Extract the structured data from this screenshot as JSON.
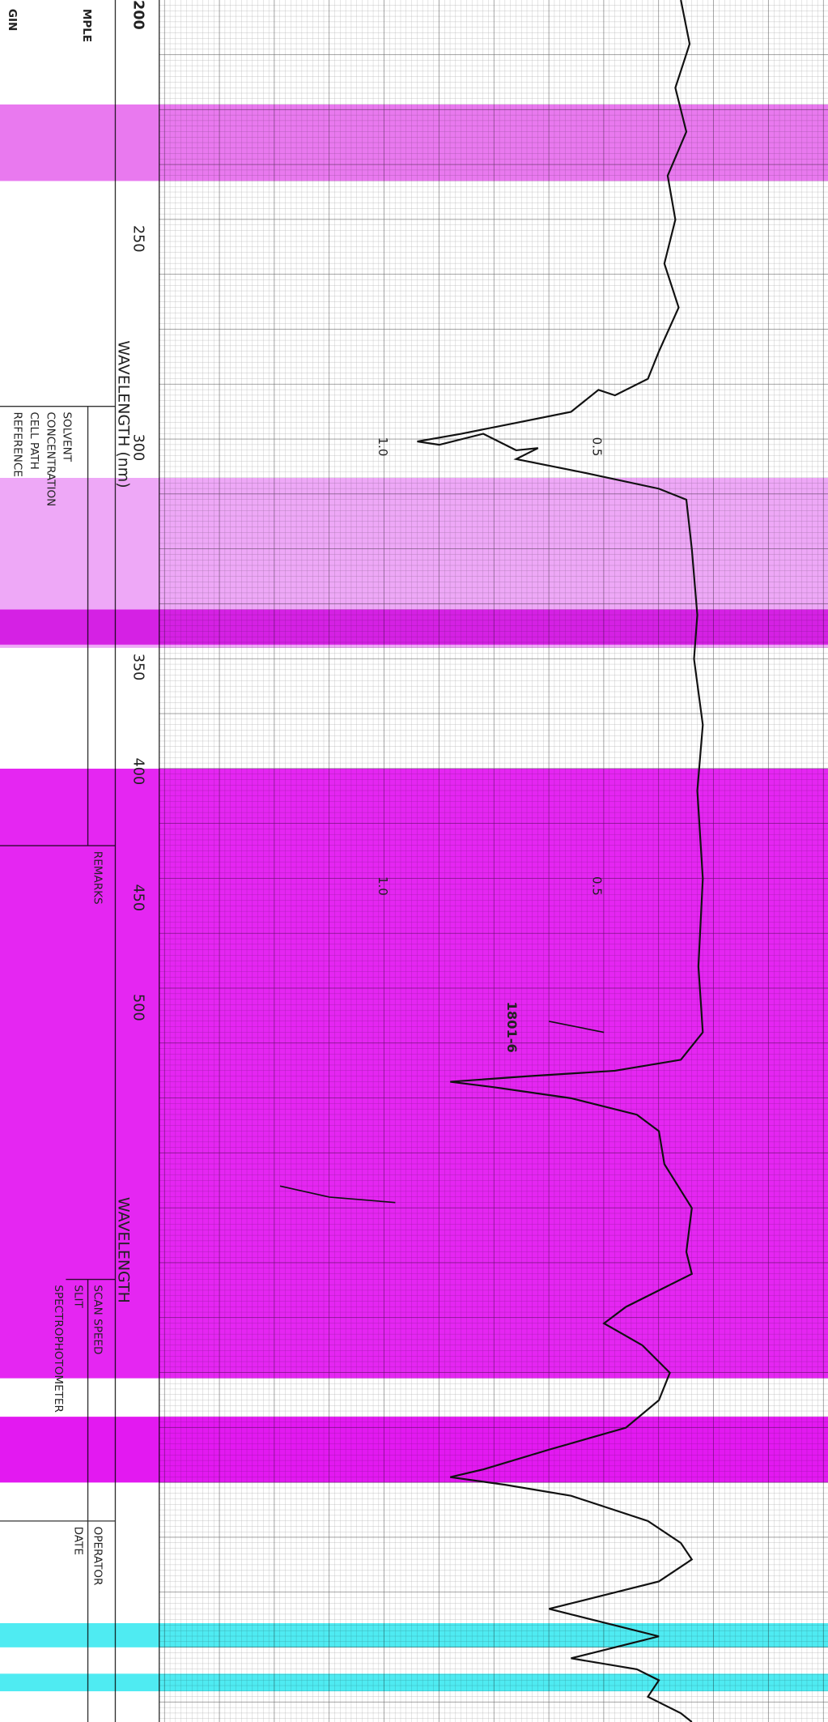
{
  "header": {
    "sample": "MPLE",
    "origin": "GIN",
    "corner": "200"
  },
  "axis": {
    "ticks": [
      "250",
      "300",
      "350",
      "400",
      "450",
      "500"
    ],
    "title": "WAVELENGTH (nm)",
    "title2": "WAVELENGTH"
  },
  "form": {
    "solvent": "SOLVENT",
    "concentration": "CONCENTRATION",
    "cell_path": "CELL PATH",
    "reference": "REFERENCE",
    "remarks": "REMARKS",
    "operator": "OPERATOR",
    "date": "DATE",
    "scan_speed": "SCAN SPEED",
    "slit": "SLIT",
    "instrument": "SPECTROPHOTOMETER"
  },
  "annotations": [
    "0.5",
    "1.0",
    "0.5",
    "1.0",
    "1801-6"
  ]
}
